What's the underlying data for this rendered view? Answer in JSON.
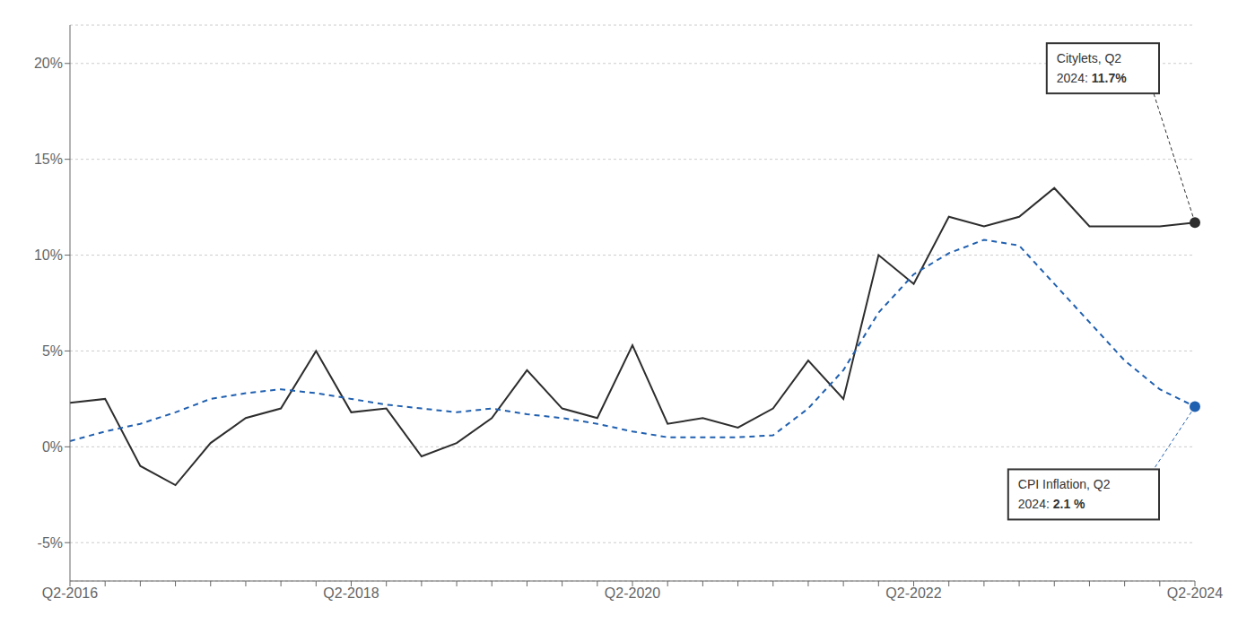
{
  "chart_data": {
    "type": "line",
    "categories": [
      "Q2-2016",
      null,
      null,
      null,
      null,
      null,
      null,
      null,
      "Q2-2018",
      null,
      null,
      null,
      null,
      null,
      null,
      null,
      "Q2-2020",
      null,
      null,
      null,
      null,
      null,
      null,
      null,
      "Q2-2022",
      null,
      null,
      null,
      null,
      null,
      null,
      null,
      "Q2-2024"
    ],
    "series": [
      {
        "color": "#2d2d2d",
        "line_style": "solid",
        "values": [
          2.3,
          2.5,
          -1.0,
          -2.0,
          0.2,
          1.5,
          2.0,
          5.0,
          1.8,
          2.0,
          -0.5,
          0.2,
          1.5,
          4.0,
          2.0,
          1.5,
          5.3,
          1.2,
          1.5,
          1.0,
          2.0,
          4.5,
          2.5,
          10.0,
          8.5,
          12.0,
          11.5,
          12.0,
          13.5,
          11.5,
          11.5,
          11.5,
          11.7
        ]
      },
      {
        "color": "#2060b0",
        "line_style": "dashed",
        "values": [
          0.3,
          0.8,
          1.2,
          1.8,
          2.5,
          2.8,
          3.0,
          2.8,
          2.5,
          2.2,
          2.0,
          1.8,
          2.0,
          1.7,
          1.5,
          1.2,
          0.8,
          0.5,
          0.5,
          0.5,
          0.6,
          2.0,
          4.0,
          7.0,
          9.0,
          10.1,
          10.8,
          10.5,
          8.5,
          6.5,
          4.5,
          3.0,
          2.1
        ]
      }
    ],
    "ylim": [
      -7,
      22
    ],
    "yticks": [
      {
        "value": -5,
        "label": "-5%"
      },
      {
        "value": 0,
        "label": "0%"
      },
      {
        "value": 5,
        "label": "5%"
      },
      {
        "value": 10,
        "label": "10%"
      },
      {
        "value": 15,
        "label": "15%"
      },
      {
        "value": 20,
        "label": "20%"
      }
    ],
    "grid": true,
    "annotations": [
      {
        "text": "Citylets, Q2\n2024: 11.7%"
      },
      {
        "text": "CPI Inflation, Q2\n2024: 2.1 %"
      }
    ]
  }
}
